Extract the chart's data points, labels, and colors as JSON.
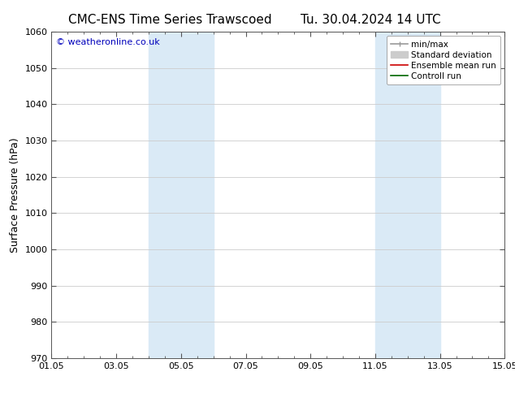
{
  "title_left": "CMC-ENS Time Series Trawscoed",
  "title_right": "Tu. 30.04.2024 14 UTC",
  "ylabel": "Surface Pressure (hPa)",
  "ylim": [
    970,
    1060
  ],
  "yticks": [
    970,
    980,
    990,
    1000,
    1010,
    1020,
    1030,
    1040,
    1050,
    1060
  ],
  "xlim_start": 0,
  "xlim_end": 14,
  "xtick_labels": [
    "01.05",
    "03.05",
    "05.05",
    "07.05",
    "09.05",
    "11.05",
    "13.05",
    "15.05"
  ],
  "xtick_positions": [
    0,
    2,
    4,
    6,
    8,
    10,
    12,
    14
  ],
  "shaded_bands": [
    {
      "x_start": 3.0,
      "x_end": 5.0
    },
    {
      "x_start": 10.0,
      "x_end": 12.0
    }
  ],
  "shade_color": "#daeaf6",
  "watermark": "© weatheronline.co.uk",
  "watermark_color": "#0000bb",
  "legend_entries": [
    {
      "label": "min/max",
      "color": "#999999"
    },
    {
      "label": "Standard deviation",
      "color": "#cccccc"
    },
    {
      "label": "Ensemble mean run",
      "color": "#cc0000"
    },
    {
      "label": "Controll run",
      "color": "#006600"
    }
  ],
  "bg_color": "#ffffff",
  "grid_color": "#cccccc",
  "title_fontsize": 11,
  "axis_fontsize": 9,
  "tick_fontsize": 8,
  "legend_fontsize": 7.5
}
